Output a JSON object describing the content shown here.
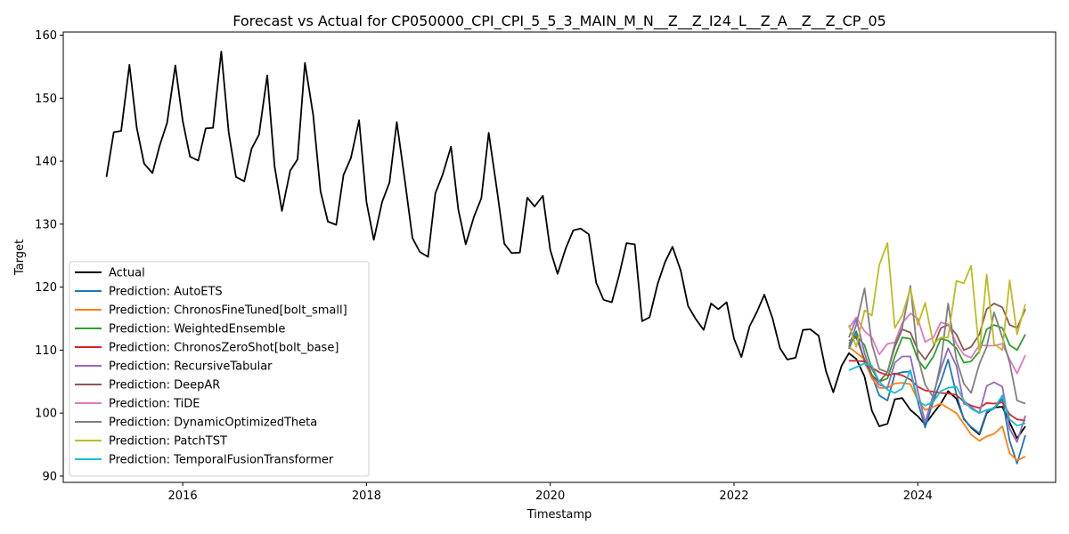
{
  "chart_data": {
    "type": "line",
    "title": "Forecast vs Actual for CP050000_CPI_CPI_5_5_3_MAIN_M_N__Z__Z_I24_L__Z_A__Z__Z_CP_05",
    "xlabel": "Timestamp",
    "ylabel": "Target",
    "xlim": [
      2014.7,
      2025.5
    ],
    "ylim": [
      89,
      160.5
    ],
    "xticks": [
      2016,
      2018,
      2020,
      2022,
      2024
    ],
    "yticks": [
      90,
      100,
      110,
      120,
      130,
      140,
      150,
      160
    ],
    "legend_position": "lower-left",
    "grid": false,
    "series": [
      {
        "name": "Actual",
        "color": "#000000",
        "x": [
          2015.17,
          2015.25,
          2015.33,
          2015.42,
          2015.5,
          2015.58,
          2015.67,
          2015.75,
          2015.83,
          2015.92,
          2016.0,
          2016.08,
          2016.17,
          2016.25,
          2016.33,
          2016.42,
          2016.5,
          2016.58,
          2016.67,
          2016.75,
          2016.83,
          2016.92,
          2017.0,
          2017.08,
          2017.17,
          2017.25,
          2017.33,
          2017.42,
          2017.5,
          2017.58,
          2017.67,
          2017.75,
          2017.83,
          2017.92,
          2018.0,
          2018.08,
          2018.17,
          2018.25,
          2018.33,
          2018.42,
          2018.5,
          2018.58,
          2018.67,
          2018.75,
          2018.83,
          2018.92,
          2019.0,
          2019.08,
          2019.17,
          2019.25,
          2019.33,
          2019.42,
          2019.5,
          2019.58,
          2019.67,
          2019.75,
          2019.83,
          2019.92,
          2020.0,
          2020.08,
          2020.17,
          2020.25,
          2020.33,
          2020.42,
          2020.5,
          2020.58,
          2020.67,
          2020.75,
          2020.83,
          2020.92,
          2021.0,
          2021.08,
          2021.17,
          2021.25,
          2021.33,
          2021.42,
          2021.5,
          2021.58,
          2021.67,
          2021.75,
          2021.83,
          2021.92,
          2022.0,
          2022.08,
          2022.17,
          2022.25,
          2022.33,
          2022.42,
          2022.5,
          2022.58,
          2022.67,
          2022.75,
          2022.83,
          2022.92,
          2023.0,
          2023.08,
          2023.17,
          2023.25,
          2023.33,
          2023.42,
          2023.5,
          2023.58,
          2023.67,
          2023.75,
          2023.83,
          2023.92,
          2024.0,
          2024.08,
          2024.17,
          2024.25,
          2024.33,
          2024.42,
          2024.5,
          2024.58,
          2024.67,
          2024.75,
          2024.83,
          2024.92,
          2025.0,
          2025.08,
          2025.17
        ],
        "values": [
          137.5,
          144.6,
          144.8,
          155.3,
          145.3,
          139.6,
          138.1,
          142.5,
          146.1,
          155.2,
          146.4,
          140.7,
          140.1,
          145.2,
          145.3,
          157.4,
          144.6,
          137.5,
          136.8,
          142.0,
          144.2,
          153.6,
          139.2,
          132.1,
          138.5,
          140.3,
          155.6,
          147.3,
          135.2,
          130.4,
          129.9,
          137.8,
          140.5,
          146.5,
          133.5,
          127.5,
          133.5,
          136.6,
          146.2,
          136.7,
          127.8,
          125.6,
          124.8,
          134.9,
          137.9,
          142.3,
          132.3,
          126.8,
          131.2,
          134.1,
          144.5,
          135.4,
          126.9,
          125.4,
          125.5,
          134.2,
          132.8,
          134.5,
          125.9,
          122.1,
          126.2,
          129.0,
          129.3,
          128.4,
          120.7,
          118.0,
          117.6,
          121.9,
          127.0,
          126.8,
          114.6,
          115.2,
          120.6,
          124.0,
          126.4,
          122.6,
          117.0,
          115.0,
          113.2,
          117.4,
          116.5,
          117.6,
          111.8,
          108.9,
          113.8,
          116.1,
          118.8,
          115.0,
          110.3,
          108.5,
          108.8,
          113.2,
          113.3,
          112.3,
          106.7,
          103.3,
          107.5,
          109.5,
          108.6,
          105.8,
          100.4,
          97.9,
          98.3,
          102.2,
          102.4,
          100.5,
          99.5,
          98.2,
          100.0,
          101.5,
          103.5,
          102.3,
          99.1,
          97.7,
          96.6,
          100.0,
          100.9,
          101.0,
          98.5,
          96.0,
          97.9
        ]
      },
      {
        "name": "Prediction: AutoETS",
        "color": "#1f77b4",
        "x": [
          2023.25,
          2023.33,
          2023.42,
          2023.5,
          2023.58,
          2023.67,
          2023.75,
          2023.83,
          2023.92,
          2024.0,
          2024.08,
          2024.17,
          2024.25,
          2024.33,
          2024.42,
          2024.5,
          2024.58,
          2024.67,
          2024.75,
          2024.83,
          2024.92,
          2025.0,
          2025.08,
          2025.17
        ],
        "values": [
          110.2,
          113.0,
          108.0,
          106.0,
          102.8,
          102.0,
          106.2,
          106.5,
          106.6,
          101.8,
          97.7,
          102.0,
          105.0,
          108.5,
          103.0,
          99.0,
          97.8,
          96.8,
          100.2,
          100.7,
          102.3,
          95.6,
          92.0,
          96.5
        ]
      },
      {
        "name": "Prediction: ChronosFineTuned[bolt_small]",
        "color": "#ff7f0e",
        "x": [
          2023.25,
          2023.33,
          2023.42,
          2023.5,
          2023.58,
          2023.67,
          2023.75,
          2023.83,
          2023.92,
          2024.0,
          2024.08,
          2024.17,
          2024.25,
          2024.33,
          2024.42,
          2024.5,
          2024.58,
          2024.67,
          2024.75,
          2024.83,
          2024.92,
          2025.0,
          2025.08,
          2025.17
        ],
        "values": [
          110.5,
          109.6,
          108.5,
          105.5,
          104.0,
          104.0,
          104.7,
          104.8,
          104.6,
          102.0,
          100.5,
          101.0,
          101.5,
          100.8,
          100.0,
          98.3,
          96.6,
          95.6,
          96.3,
          96.7,
          97.9,
          93.6,
          92.5,
          93.1
        ]
      },
      {
        "name": "Prediction: WeightedEnsemble",
        "color": "#2ca02c",
        "x": [
          2023.25,
          2023.33,
          2023.42,
          2023.5,
          2023.58,
          2023.67,
          2023.75,
          2023.83,
          2023.92,
          2024.0,
          2024.08,
          2024.17,
          2024.25,
          2024.33,
          2024.42,
          2024.5,
          2024.58,
          2024.67,
          2024.75,
          2024.83,
          2024.92,
          2025.0,
          2025.08,
          2025.17
        ],
        "values": [
          111.0,
          112.3,
          110.8,
          107.0,
          105.0,
          105.5,
          109.0,
          112.0,
          111.8,
          108.5,
          107.0,
          109.0,
          111.8,
          111.5,
          110.3,
          108.0,
          108.2,
          109.8,
          113.3,
          114.0,
          113.5,
          110.8,
          110.0,
          112.5
        ]
      },
      {
        "name": "Prediction: ChronosZeroShot[bolt_base]",
        "color": "#d62728",
        "x": [
          2023.25,
          2023.33,
          2023.42,
          2023.5,
          2023.58,
          2023.67,
          2023.75,
          2023.83,
          2023.92,
          2024.0,
          2024.08,
          2024.17,
          2024.25,
          2024.33,
          2024.42,
          2024.5,
          2024.58,
          2024.67,
          2024.75,
          2024.83,
          2024.92,
          2025.0,
          2025.08,
          2025.17
        ],
        "values": [
          108.3,
          108.3,
          108.2,
          107.2,
          106.5,
          106.0,
          106.3,
          106.0,
          105.3,
          104.2,
          103.6,
          103.4,
          103.2,
          103.1,
          102.9,
          101.8,
          101.2,
          100.8,
          101.6,
          101.5,
          101.7,
          99.8,
          99.0,
          98.8
        ]
      },
      {
        "name": "Prediction: RecursiveTabular",
        "color": "#9467bd",
        "x": [
          2023.25,
          2023.33,
          2023.42,
          2023.5,
          2023.58,
          2023.67,
          2023.75,
          2023.83,
          2023.92,
          2024.0,
          2024.08,
          2024.17,
          2024.25,
          2024.33,
          2024.42,
          2024.5,
          2024.58,
          2024.67,
          2024.75,
          2024.83,
          2024.92,
          2025.0,
          2025.08,
          2025.17
        ],
        "values": [
          112.0,
          115.0,
          109.5,
          106.0,
          104.5,
          104.0,
          108.0,
          109.0,
          109.0,
          103.5,
          98.5,
          103.0,
          107.0,
          110.3,
          107.5,
          101.5,
          101.0,
          100.0,
          104.3,
          104.9,
          104.2,
          97.5,
          95.4,
          99.6
        ]
      },
      {
        "name": "Prediction: DeepAR",
        "color": "#8c564b",
        "x": [
          2023.25,
          2023.33,
          2023.42,
          2023.5,
          2023.58,
          2023.67,
          2023.75,
          2023.83,
          2023.92,
          2024.0,
          2024.08,
          2024.17,
          2024.25,
          2024.33,
          2024.42,
          2024.5,
          2024.58,
          2024.67,
          2024.75,
          2024.83,
          2024.92,
          2025.0,
          2025.08,
          2025.17
        ],
        "values": [
          111.5,
          112.0,
          108.5,
          106.0,
          105.0,
          106.5,
          110.5,
          113.3,
          112.8,
          110.0,
          108.5,
          110.5,
          113.5,
          114.0,
          112.5,
          110.0,
          110.5,
          112.5,
          116.5,
          117.4,
          116.8,
          114.0,
          113.5,
          116.5
        ]
      },
      {
        "name": "Prediction: TiDE",
        "color": "#e377c2",
        "x": [
          2023.25,
          2023.33,
          2023.42,
          2023.5,
          2023.58,
          2023.67,
          2023.75,
          2023.83,
          2023.92,
          2024.0,
          2024.08,
          2024.17,
          2024.25,
          2024.33,
          2024.42,
          2024.5,
          2024.58,
          2024.67,
          2024.75,
          2024.83,
          2024.92,
          2025.0,
          2025.08,
          2025.17
        ],
        "values": [
          113.5,
          115.2,
          113.0,
          112.0,
          109.3,
          111.0,
          111.2,
          114.3,
          115.8,
          115.0,
          111.3,
          112.0,
          114.4,
          114.1,
          111.0,
          109.3,
          108.8,
          110.8,
          110.7,
          110.7,
          111.0,
          108.5,
          106.3,
          109.2
        ]
      },
      {
        "name": "Prediction: DynamicOptimizedTheta",
        "color": "#7f7f7f",
        "x": [
          2023.25,
          2023.33,
          2023.42,
          2023.5,
          2023.58,
          2023.67,
          2023.75,
          2023.83,
          2023.92,
          2024.0,
          2024.08,
          2024.17,
          2024.25,
          2024.33,
          2024.42,
          2024.5,
          2024.58,
          2024.67,
          2024.75,
          2024.83,
          2024.92,
          2025.0,
          2025.08,
          2025.17
        ],
        "values": [
          110.5,
          114.0,
          119.8,
          111.0,
          107.0,
          106.5,
          111.0,
          113.5,
          120.2,
          109.0,
          104.5,
          102.5,
          108.0,
          117.4,
          108.5,
          104.7,
          103.2,
          107.8,
          110.5,
          116.0,
          112.0,
          108.0,
          102.0,
          101.5
        ]
      },
      {
        "name": "Prediction: PatchTST",
        "color": "#bcbd22",
        "x": [
          2023.25,
          2023.33,
          2023.42,
          2023.5,
          2023.58,
          2023.67,
          2023.75,
          2023.83,
          2023.92,
          2024.0,
          2024.08,
          2024.17,
          2024.25,
          2024.33,
          2024.42,
          2024.5,
          2024.58,
          2024.67,
          2024.75,
          2024.83,
          2024.92,
          2025.0,
          2025.08,
          2025.17
        ],
        "values": [
          114.0,
          110.5,
          116.3,
          115.5,
          123.5,
          127.0,
          113.5,
          115.5,
          119.8,
          114.0,
          117.5,
          111.0,
          112.0,
          112.0,
          121.0,
          120.6,
          123.4,
          109.5,
          122.0,
          111.0,
          110.0,
          121.1,
          112.5,
          117.3
        ]
      },
      {
        "name": "Prediction: TemporalFusionTransformer",
        "color": "#17becf",
        "x": [
          2023.25,
          2023.33,
          2023.42,
          2023.5,
          2023.58,
          2023.67,
          2023.75,
          2023.83,
          2023.92,
          2024.0,
          2024.08,
          2024.17,
          2024.25,
          2024.33,
          2024.42,
          2024.5,
          2024.58,
          2024.67,
          2024.75,
          2024.83,
          2024.92,
          2025.0,
          2025.08,
          2025.17
        ],
        "values": [
          106.8,
          107.3,
          107.9,
          107.5,
          105.0,
          103.7,
          103.2,
          103.9,
          106.8,
          102.0,
          101.2,
          101.8,
          103.5,
          104.0,
          104.2,
          102.0,
          100.7,
          100.0,
          100.5,
          100.8,
          102.8,
          99.0,
          98.0,
          98.4
        ]
      }
    ]
  }
}
